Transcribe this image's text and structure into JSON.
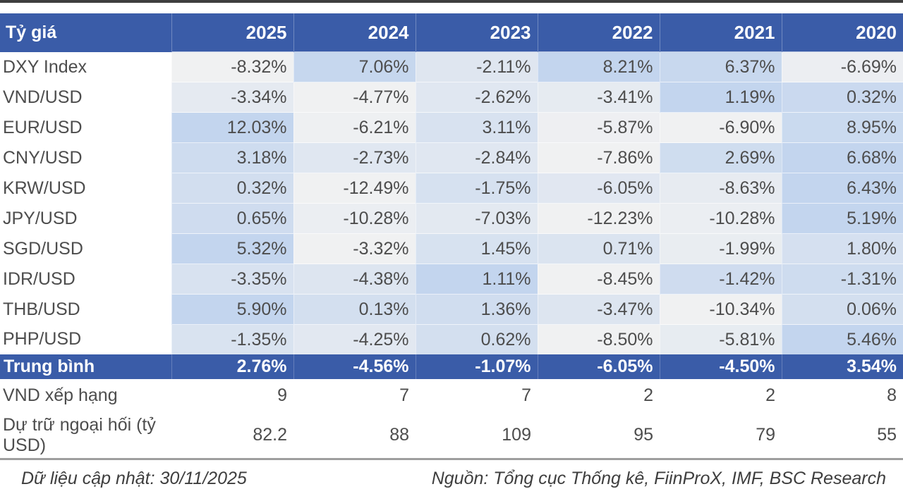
{
  "chart_data": {
    "type": "table",
    "title": "Tỷ giá",
    "columns": [
      "2025",
      "2024",
      "2023",
      "2022",
      "2021",
      "2020"
    ],
    "value_format": "percent",
    "rows": [
      {
        "label": "DXY Index",
        "values": [
          -8.32,
          7.06,
          -2.11,
          8.21,
          6.37,
          -6.69
        ]
      },
      {
        "label": "VND/USD",
        "values": [
          -3.34,
          -4.77,
          -2.62,
          -3.41,
          1.19,
          0.32
        ]
      },
      {
        "label": "EUR/USD",
        "values": [
          12.03,
          -6.21,
          3.11,
          -5.87,
          -6.9,
          8.95
        ]
      },
      {
        "label": "CNY/USD",
        "values": [
          3.18,
          -2.73,
          -2.84,
          -7.86,
          2.69,
          6.68
        ]
      },
      {
        "label": "KRW/USD",
        "values": [
          0.32,
          -12.49,
          -1.75,
          -6.05,
          -8.63,
          6.43
        ]
      },
      {
        "label": "JPY/USD",
        "values": [
          0.65,
          -10.28,
          -7.03,
          -12.23,
          -10.28,
          5.19
        ]
      },
      {
        "label": "SGD/USD",
        "values": [
          5.32,
          -3.32,
          1.45,
          0.71,
          -1.99,
          1.8
        ]
      },
      {
        "label": "IDR/USD",
        "values": [
          -3.35,
          -4.38,
          1.11,
          -8.45,
          -1.42,
          -1.31
        ]
      },
      {
        "label": "THB/USD",
        "values": [
          5.9,
          0.13,
          1.36,
          -3.47,
          -10.34,
          0.06
        ]
      },
      {
        "label": "PHP/USD",
        "values": [
          -1.35,
          -4.25,
          0.62,
          -8.5,
          -5.81,
          5.46
        ]
      }
    ],
    "average_row": {
      "label": "Trung bình",
      "values": [
        2.76,
        -4.56,
        -1.07,
        -6.05,
        -4.5,
        3.54
      ]
    },
    "plain_rows": [
      {
        "label": "VND xếp hạng",
        "values": [
          9,
          7,
          7,
          2,
          2,
          8
        ]
      },
      {
        "label": "Dự trữ ngoại hối (tỷ USD)",
        "values": [
          82.2,
          88,
          109,
          95,
          79,
          55
        ]
      }
    ],
    "shading": "per-row two-color scale, min value lightest, max value most blue"
  },
  "footer": {
    "updated": "Dữ liệu cập nhật: 30/11/2025",
    "source": "Nguồn: Tổng cục Thống kê, FiinProX, IMF, BSC Research"
  },
  "colors": {
    "header_bg": "#3A5CA8",
    "header_text": "#FFFFFF",
    "scale_min": "#F0F1F2",
    "scale_max": "#C3D5EE",
    "body_text": "#4D4D4D"
  }
}
